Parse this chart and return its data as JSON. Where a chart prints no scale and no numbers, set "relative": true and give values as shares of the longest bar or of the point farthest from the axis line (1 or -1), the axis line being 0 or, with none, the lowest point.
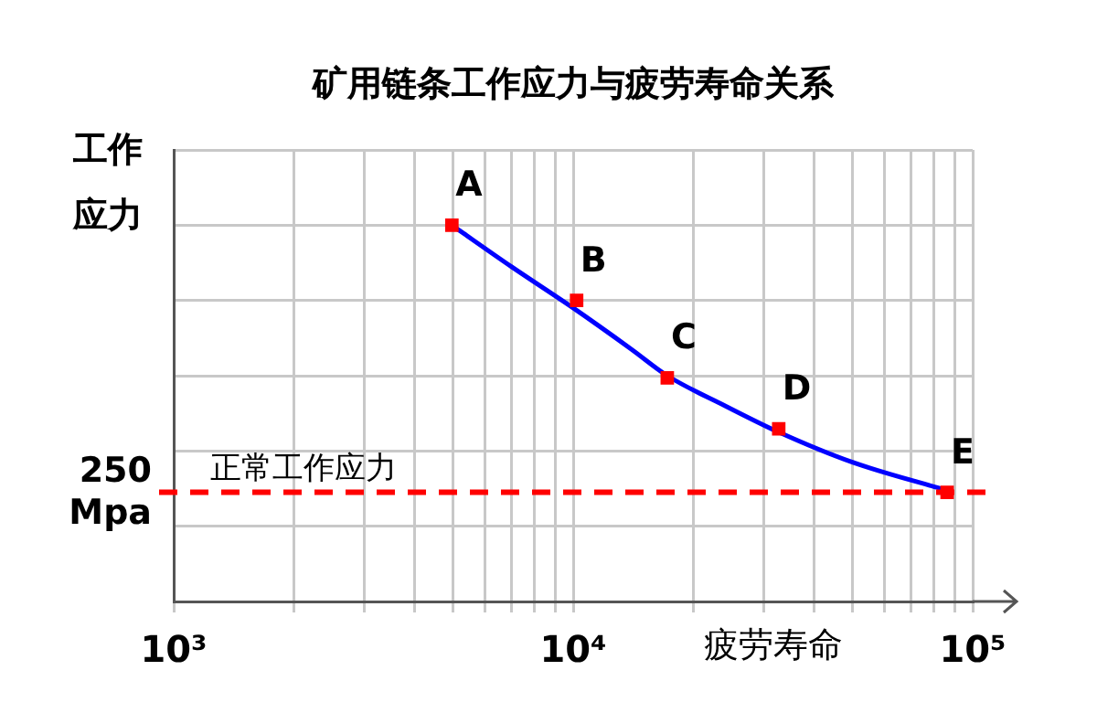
{
  "chart_data": {
    "type": "scatter",
    "title": "矿用链条工作应力与疲劳寿命关系",
    "xlabel": "疲劳寿命",
    "ylabel": "工作应力",
    "relative": true,
    "log": "x",
    "xlim": [
      1000,
      100000
    ],
    "xticks": [
      {
        "value": 1000,
        "label": "10³"
      },
      {
        "value": 2000,
        "label": null
      },
      {
        "value": 3000,
        "label": null
      },
      {
        "value": 4000,
        "label": null
      },
      {
        "value": 5000,
        "label": null
      },
      {
        "value": 6000,
        "label": null
      },
      {
        "value": 7000,
        "label": null
      },
      {
        "value": 8000,
        "label": null
      },
      {
        "value": 9000,
        "label": null
      },
      {
        "value": 10000,
        "label": "10⁴"
      },
      {
        "value": 20000,
        "label": null
      },
      {
        "value": 30000,
        "label": null
      },
      {
        "value": 40000,
        "label": null
      },
      {
        "value": 50000,
        "label": null
      },
      {
        "value": 60000,
        "label": null
      },
      {
        "value": 70000,
        "label": null
      },
      {
        "value": 80000,
        "label": null
      },
      {
        "value": 90000,
        "label": null
      },
      {
        "value": 100000,
        "label": "10⁵"
      }
    ],
    "grid": true,
    "series": [
      {
        "type": "line",
        "color": "#0000ff",
        "x": [
          4970,
          7000,
          10000,
          14000,
          17200,
          24000,
          32700,
          50000,
          86300
        ],
        "values": [
          1,
          0.89,
          0.78,
          0.67,
          0.6,
          0.52,
          0.45,
          0.37,
          0.295
        ]
      },
      {
        "color": "#ff0000",
        "marker": "square",
        "x": [
          4970,
          10200,
          17200,
          32700,
          86300
        ],
        "values": [
          1,
          0.8,
          0.594,
          0.459,
          0.29
        ]
      }
    ],
    "ref_lines": [
      {
        "axis": "y",
        "value": 0.29,
        "label": "正常工作应力",
        "color": "#ff0000",
        "line_style": "dashed"
      }
    ],
    "annotations": [
      {
        "text": "A",
        "x": 4970,
        "y": 1
      },
      {
        "text": "B",
        "x": 10200,
        "y": 0.8
      },
      {
        "text": "C",
        "x": 17200,
        "y": 0.594
      },
      {
        "text": "D",
        "x": 32700,
        "y": 0.459
      },
      {
        "text": "E",
        "x": 86300,
        "y": 0.29
      },
      {
        "text": "250 Mpa",
        "x": 1000,
        "y": 0.29
      }
    ]
  }
}
